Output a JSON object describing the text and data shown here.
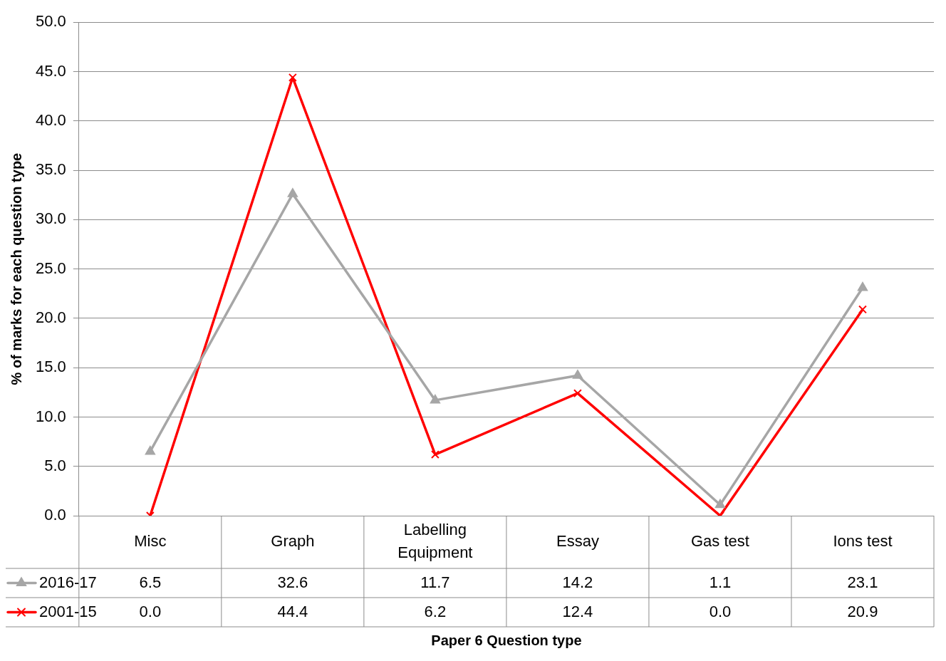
{
  "chart_data": {
    "type": "line",
    "xlabel": "Paper 6 Question type",
    "ylabel": "% of marks for each question type",
    "categories": [
      "Misc",
      "Graph",
      "Labelling Equipment",
      "Essay",
      "Gas test",
      "Ions test"
    ],
    "series": [
      {
        "name": "2016-17",
        "color": "#a6a6a6",
        "marker": "triangle",
        "values": [
          6.5,
          32.6,
          11.7,
          14.2,
          1.1,
          23.1
        ],
        "value_labels": [
          "6.5",
          "32.6",
          "11.7",
          "14.2",
          "1.1",
          "23.1"
        ]
      },
      {
        "name": "2001-15",
        "color": "#ff0000",
        "marker": "cross",
        "values": [
          0,
          44.4,
          6.2,
          12.4,
          0,
          20.9
        ],
        "value_labels": [
          "0.0",
          "44.4",
          "6.2",
          "12.4",
          "0.0",
          "20.9"
        ]
      }
    ],
    "ylim": [
      0,
      50
    ],
    "yticks": [
      {
        "value": 0,
        "label": "0.0"
      },
      {
        "value": 5,
        "label": "5.0"
      },
      {
        "value": 10,
        "label": "10.0"
      },
      {
        "value": 15,
        "label": "15.0"
      },
      {
        "value": 20,
        "label": "20.0"
      },
      {
        "value": 25,
        "label": "25.0"
      },
      {
        "value": 30,
        "label": "30.0"
      },
      {
        "value": 35,
        "label": "35.0"
      },
      {
        "value": 40,
        "label": "40.0"
      },
      {
        "value": 45,
        "label": "45.0"
      },
      {
        "value": 50,
        "label": "50.0"
      }
    ],
    "grid": "y",
    "legend": "bottom left"
  }
}
